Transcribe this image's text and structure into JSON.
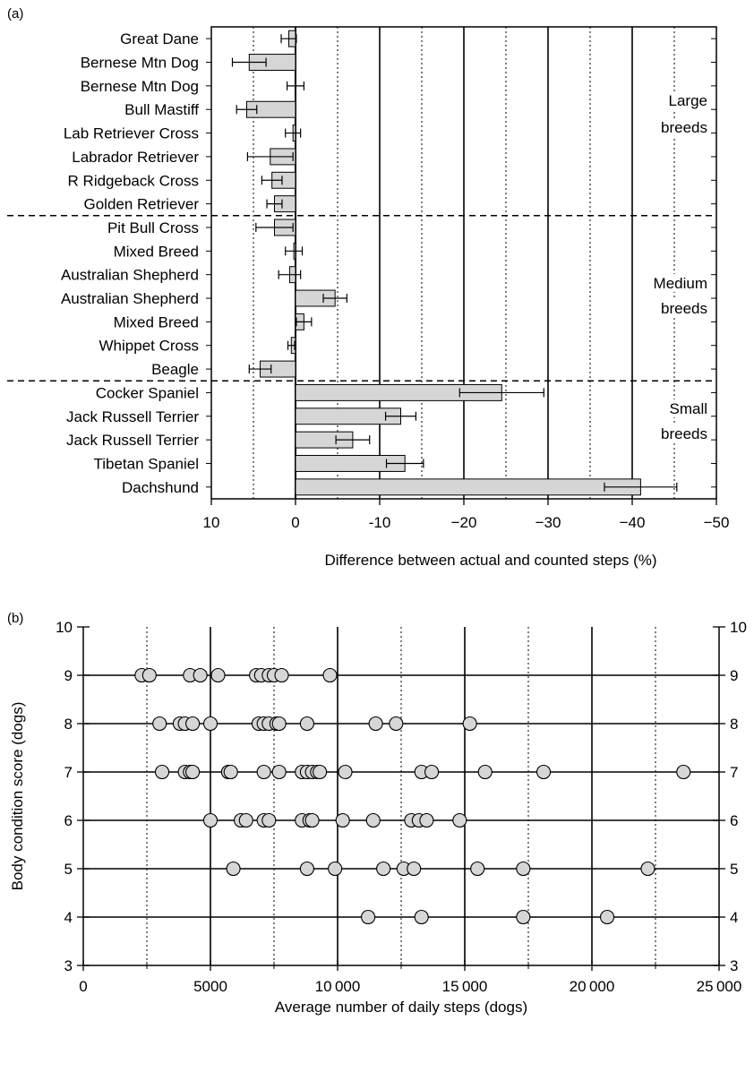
{
  "chart_data": [
    {
      "panel": "(a)",
      "type": "bar",
      "orientation": "horizontal",
      "xlabel": "Difference between actual and counted steps (%)",
      "ylabel": "",
      "xlim": [
        10,
        -50
      ],
      "xticks": [
        "10",
        "0",
        "-10",
        "−20",
        "−30",
        "−40",
        "−50"
      ],
      "groups": [
        {
          "label": "Large\nbreeds"
        },
        {
          "label": "Medium\nbreeds"
        },
        {
          "label": "Small\nbreeds"
        }
      ],
      "categories": [
        "Great Dane",
        "Bernese Mtn Dog",
        "Bernese Mtn Dog",
        "Bull Mastiff",
        "Lab Retriever Cross",
        "Labrador Retriever",
        "R Ridgeback Cross",
        "Golden Retriever",
        "Pit Bull Cross",
        "Mixed Breed",
        "Australian Shepherd",
        "Australian Shepherd",
        "Mixed Breed",
        "Whippet Cross",
        "Beagle",
        "Cocker Spaniel",
        "Jack Russell Terrier",
        "Jack Russell Terrier",
        "Tibetan Spaniel",
        "Dachshund"
      ],
      "values": [
        0.8,
        5.5,
        0,
        5.8,
        0.3,
        3.0,
        2.8,
        2.5,
        2.5,
        0.2,
        0.7,
        -4.7,
        -1.0,
        0.5,
        4.2,
        -24.5,
        -12.5,
        -6.8,
        -13.0,
        -41.0
      ],
      "errors": [
        0.9,
        2.0,
        1.0,
        1.2,
        0.9,
        2.7,
        1.2,
        0.9,
        2.2,
        1.0,
        1.3,
        1.4,
        0.9,
        0.4,
        1.3,
        5.0,
        1.8,
        2.0,
        2.2,
        4.3
      ],
      "group_dividers_after": [
        7,
        14
      ]
    },
    {
      "panel": "(b)",
      "type": "scatter",
      "xlabel": "Average number of daily steps (dogs)",
      "ylabel": "Body condition score (dogs)",
      "xlim": [
        0,
        25000
      ],
      "ylim": [
        3,
        10
      ],
      "xticks": [
        "0",
        "5000",
        "10 000",
        "15 000",
        "20 000",
        "25 000"
      ],
      "yticks": [
        "3",
        "4",
        "5",
        "6",
        "7",
        "8",
        "9",
        "10"
      ],
      "series": [
        {
          "y": 9,
          "x": [
            2300,
            2600,
            4200,
            4600,
            5300,
            6800,
            7000,
            7300,
            7500,
            7800,
            9700
          ]
        },
        {
          "y": 8,
          "x": [
            3000,
            3800,
            4000,
            4300,
            5000,
            6900,
            7100,
            7300,
            7600,
            7700,
            8800,
            11500,
            12300,
            15200
          ]
        },
        {
          "y": 7,
          "x": [
            3100,
            4000,
            4200,
            4300,
            5700,
            5800,
            7100,
            7700,
            8600,
            8800,
            9000,
            9200,
            9300,
            10300,
            13300,
            13700,
            15800,
            18100,
            23600
          ]
        },
        {
          "y": 6,
          "x": [
            5000,
            6200,
            6400,
            7100,
            7300,
            8600,
            8900,
            9000,
            10200,
            11400,
            12900,
            13200,
            13500,
            14800
          ]
        },
        {
          "y": 5,
          "x": [
            5900,
            8800,
            9900,
            11800,
            12600,
            13000,
            15500,
            17300,
            22200
          ]
        },
        {
          "y": 4,
          "x": [
            11200,
            13300,
            17300,
            20600
          ]
        }
      ]
    }
  ]
}
